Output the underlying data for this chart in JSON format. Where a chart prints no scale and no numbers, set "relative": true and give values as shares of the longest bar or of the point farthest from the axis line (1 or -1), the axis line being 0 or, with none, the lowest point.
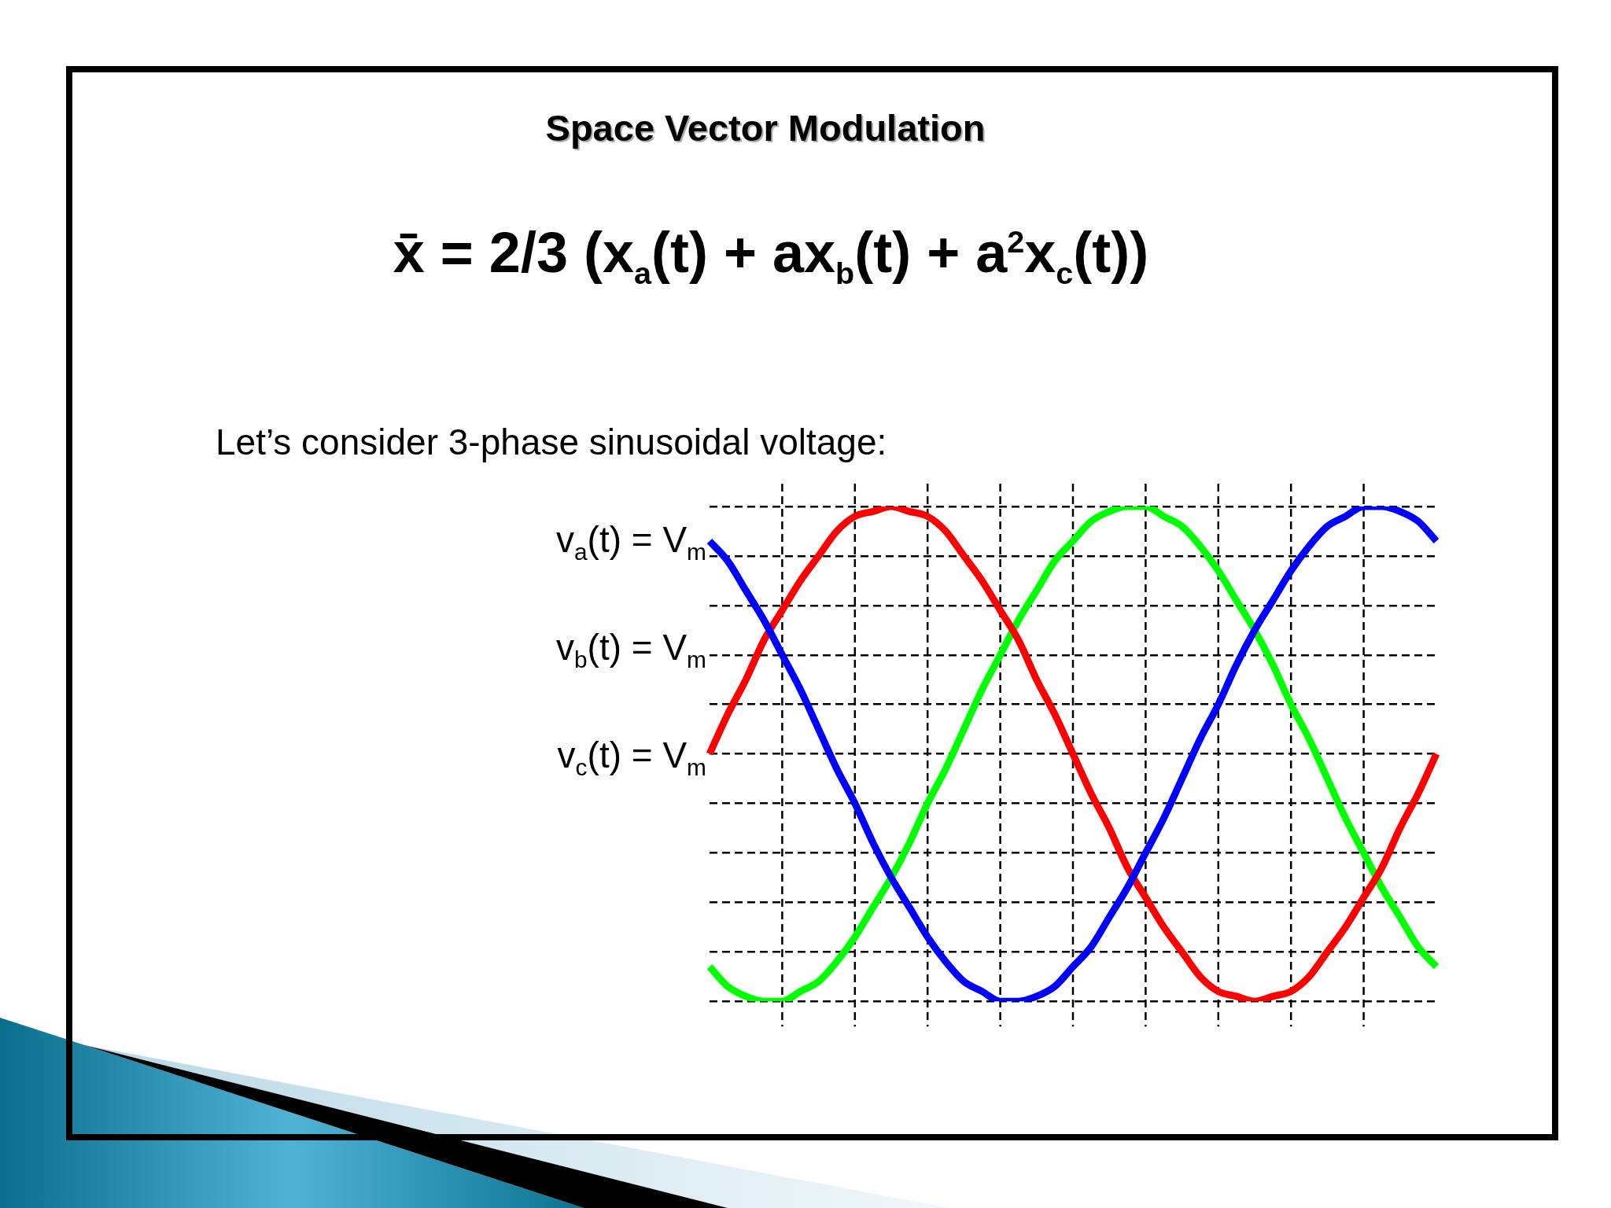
{
  "chart_data": {
    "type": "line",
    "title": "Space Vector Modulation",
    "subtitle": "x̄ = 2/3 (x$_{a}$(t) + ax$_{b}$(t) + a$^{2}$x$_{c}$(t))",
    "annotations": [
      "Let’s consider 3-phase sinusoidal voltage:",
      "v$_{a}$(t) = V$_{m}$",
      "v$_{b}$(t) = V$_{m}$",
      "v$_{c}$(t) = V$_{m}$"
    ],
    "categories": [
      null,
      null,
      null,
      null,
      null,
      null,
      null,
      null,
      null,
      null,
      null,
      null,
      null,
      null,
      null,
      null,
      null,
      null,
      null,
      null,
      null,
      null,
      null,
      null,
      null,
      null,
      null,
      null,
      null,
      null,
      null,
      null,
      null,
      null,
      null,
      null,
      null,
      null,
      null,
      null,
      null
    ],
    "relative": true,
    "grid": true,
    "series": [
      {
        "color": "#0000ff",
        "values": [
          0.93,
          0.89,
          0.83,
          0.77,
          0.7,
          0.63,
          0.55,
          0.47,
          0.4,
          0.32,
          0.25,
          0.19,
          0.13,
          0.08,
          0.04,
          0.02,
          0.0,
          0.0,
          0.01,
          0.03,
          0.07,
          0.11,
          0.17,
          0.23,
          0.3,
          0.37,
          0.45,
          0.53,
          0.6,
          0.68,
          0.75,
          0.81,
          0.87,
          0.92,
          0.96,
          0.98,
          1.0,
          1.0,
          0.99,
          0.97,
          0.93
        ]
      },
      {
        "color": "#ff0000",
        "values": [
          0.5,
          0.58,
          0.65,
          0.73,
          0.79,
          0.85,
          0.9,
          0.95,
          0.98,
          0.99,
          1.0,
          0.99,
          0.98,
          0.95,
          0.9,
          0.85,
          0.79,
          0.73,
          0.65,
          0.58,
          0.5,
          0.42,
          0.35,
          0.27,
          0.21,
          0.15,
          0.1,
          0.05,
          0.02,
          0.01,
          0.0,
          0.01,
          0.02,
          0.05,
          0.1,
          0.15,
          0.21,
          0.27,
          0.35,
          0.42,
          0.5
        ]
      },
      {
        "color": "#00ff00",
        "values": [
          0.07,
          0.03,
          0.01,
          0.0,
          0.0,
          0.02,
          0.04,
          0.08,
          0.13,
          0.19,
          0.25,
          0.32,
          0.4,
          0.47,
          0.55,
          0.63,
          0.7,
          0.77,
          0.83,
          0.89,
          0.93,
          0.97,
          0.99,
          1.0,
          1.0,
          0.98,
          0.96,
          0.92,
          0.87,
          0.81,
          0.75,
          0.68,
          0.6,
          0.53,
          0.45,
          0.37,
          0.3,
          0.23,
          0.17,
          0.11,
          0.07
        ]
      }
    ]
  }
}
